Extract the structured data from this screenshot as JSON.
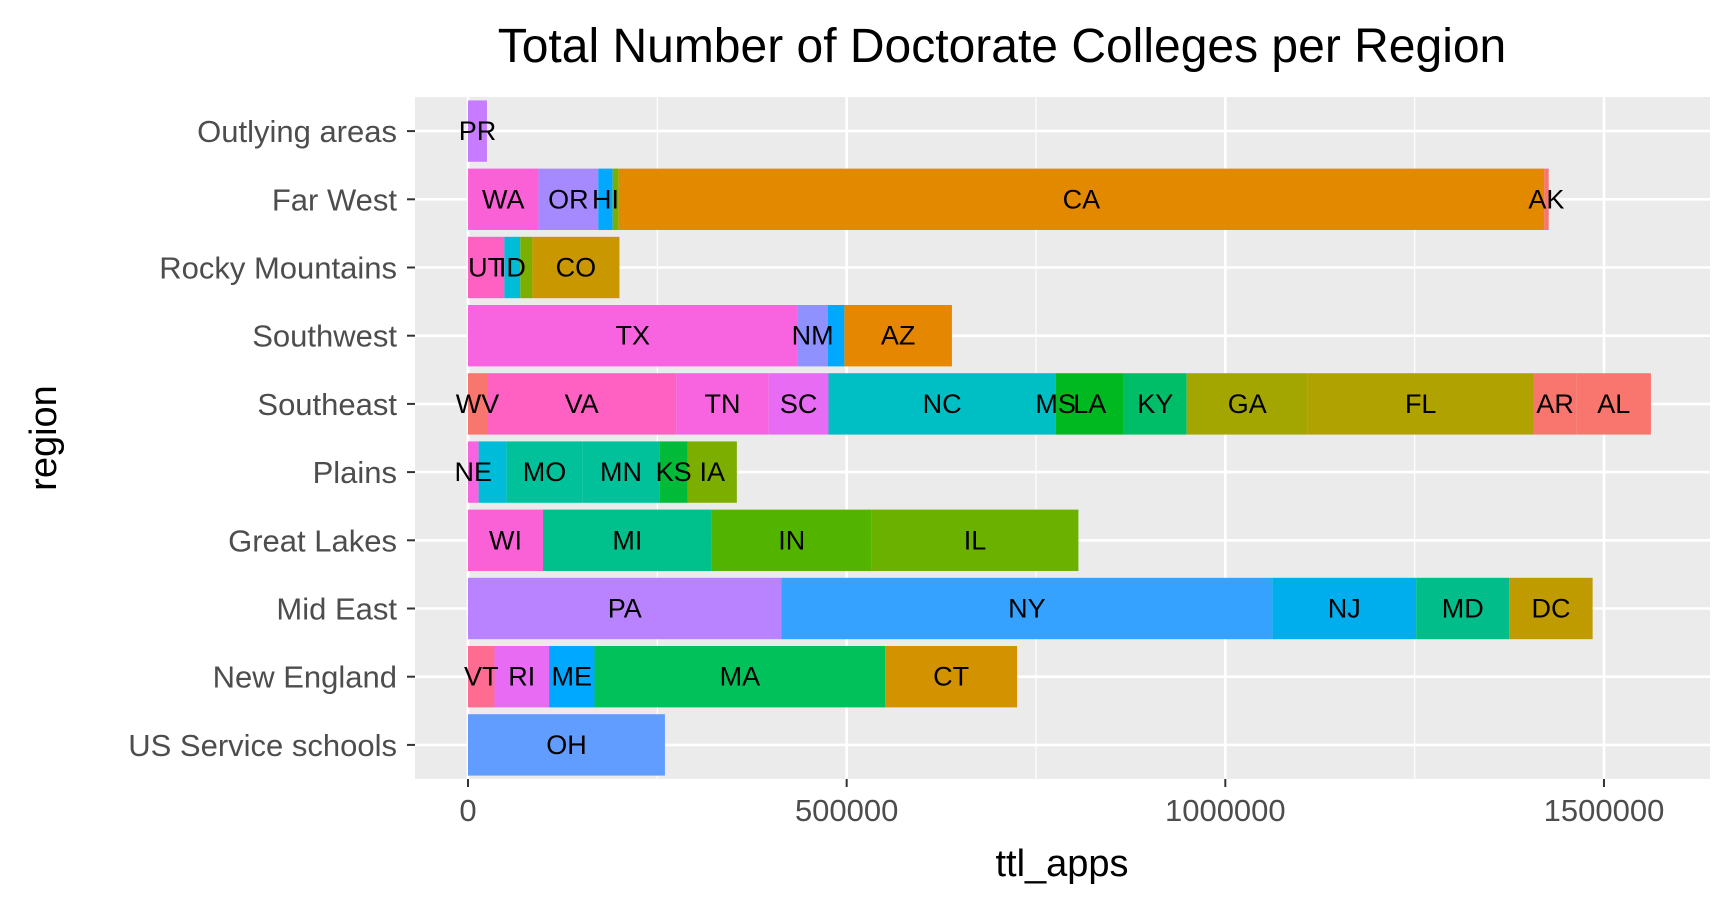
{
  "chart_data": {
    "type": "bar",
    "orientation": "horizontal",
    "stacked": true,
    "title": "Total Number of Doctorate Colleges per Region",
    "xlabel": "ttl_apps",
    "ylabel": "region",
    "xlim": [
      -70000,
      1640000
    ],
    "xticks": [
      0,
      500000,
      1000000,
      1500000
    ],
    "xtick_labels": [
      "0",
      "500000",
      "1000000",
      "1500000"
    ],
    "grid": true,
    "background": "#ebebeb",
    "categories": [
      "Outlying areas",
      "Far West",
      "Rocky Mountains",
      "Southwest",
      "Southeast",
      "Plains",
      "Great Lakes",
      "Mid East",
      "New England",
      "US Service schools"
    ],
    "bars": [
      {
        "region": "Outlying areas",
        "segments": [
          {
            "state": "PR",
            "value": 25000,
            "color": "#c77cff"
          }
        ]
      },
      {
        "region": "Far West",
        "segments": [
          {
            "state": "WA",
            "value": 93000,
            "color": "#fb61d7"
          },
          {
            "state": "OR",
            "value": 79000,
            "color": "#a58aff"
          },
          {
            "state": "HI",
            "value": 19000,
            "color": "#00a9ff"
          },
          {
            "state": "",
            "value": 8000,
            "color": "#7cae00"
          },
          {
            "state": "CA",
            "value": 1222000,
            "color": "#e38900"
          },
          {
            "state": "AK",
            "value": 6000,
            "color": "#f8766d"
          }
        ]
      },
      {
        "region": "Rocky Mountains",
        "segments": [
          {
            "state": "UT",
            "value": 48000,
            "color": "#ff61c3"
          },
          {
            "state": "ID",
            "value": 21000,
            "color": "#00bcd8"
          },
          {
            "state": "",
            "value": 16000,
            "color": "#7cae00"
          },
          {
            "state": "CO",
            "value": 115000,
            "color": "#c99800"
          }
        ]
      },
      {
        "region": "Southwest",
        "segments": [
          {
            "state": "TX",
            "value": 435000,
            "color": "#f863df"
          },
          {
            "state": "NM",
            "value": 40000,
            "color": "#8f91ff"
          },
          {
            "state": "",
            "value": 22000,
            "color": "#00a9ff"
          },
          {
            "state": "AZ",
            "value": 142000,
            "color": "#e58700"
          }
        ]
      },
      {
        "region": "Southeast",
        "segments": [
          {
            "state": "WV",
            "value": 25000,
            "color": "#f8766d"
          },
          {
            "state": "VA",
            "value": 250000,
            "color": "#ff61c3"
          },
          {
            "state": "TN",
            "value": 122000,
            "color": "#f863df"
          },
          {
            "state": "SC",
            "value": 79000,
            "color": "#e76bf3"
          },
          {
            "state": "NC",
            "value": 300000,
            "color": "#00bfc4"
          },
          {
            "state": "MS",
            "value": 0,
            "color": "#00bfc4"
          },
          {
            "state": "LA",
            "value": 90000,
            "color": "#00b81f"
          },
          {
            "state": "KY",
            "value": 83000,
            "color": "#00be67"
          },
          {
            "state": "GA",
            "value": 160000,
            "color": "#a3a500"
          },
          {
            "state": "FL",
            "value": 298000,
            "color": "#b0a200"
          },
          {
            "state": "AR",
            "value": 57000,
            "color": "#f8766d"
          },
          {
            "state": "AL",
            "value": 98000,
            "color": "#f8766d"
          }
        ]
      },
      {
        "region": "Plains",
        "segments": [
          {
            "state": "NE",
            "value": 14000,
            "color": "#f863df"
          },
          {
            "state": "",
            "value": 37000,
            "color": "#00bcd8"
          },
          {
            "state": "MO",
            "value": 100000,
            "color": "#00c19a"
          },
          {
            "state": "MN",
            "value": 102000,
            "color": "#00c19a"
          },
          {
            "state": "KS",
            "value": 37000,
            "color": "#00ba38"
          },
          {
            "state": "IA",
            "value": 65000,
            "color": "#7cae00"
          }
        ]
      },
      {
        "region": "Great Lakes",
        "segments": [
          {
            "state": "WI",
            "value": 99000,
            "color": "#fb61d7"
          },
          {
            "state": "MI",
            "value": 223000,
            "color": "#00c08b"
          },
          {
            "state": "IN",
            "value": 211000,
            "color": "#53b400"
          },
          {
            "state": "IL",
            "value": 273000,
            "color": "#6bb100"
          }
        ]
      },
      {
        "region": "Mid East",
        "segments": [
          {
            "state": "PA",
            "value": 414000,
            "color": "#b983ff"
          },
          {
            "state": "NY",
            "value": 648000,
            "color": "#35a2ff"
          },
          {
            "state": "NJ",
            "value": 190000,
            "color": "#00aeee"
          },
          {
            "state": "MD",
            "value": 123000,
            "color": "#00bd8a"
          },
          {
            "state": "DC",
            "value": 110000,
            "color": "#c09b00"
          }
        ]
      },
      {
        "region": "New England",
        "segments": [
          {
            "state": "VT",
            "value": 35000,
            "color": "#ff6c91"
          },
          {
            "state": "RI",
            "value": 72000,
            "color": "#e76bf3"
          },
          {
            "state": "ME",
            "value": 60000,
            "color": "#00a9ff"
          },
          {
            "state": "MA",
            "value": 384000,
            "color": "#00c15a"
          },
          {
            "state": "CT",
            "value": 174000,
            "color": "#d39200"
          }
        ]
      },
      {
        "region": "US Service schools",
        "segments": [
          {
            "state": "OH",
            "value": 260000,
            "color": "#619cff"
          }
        ]
      }
    ]
  }
}
